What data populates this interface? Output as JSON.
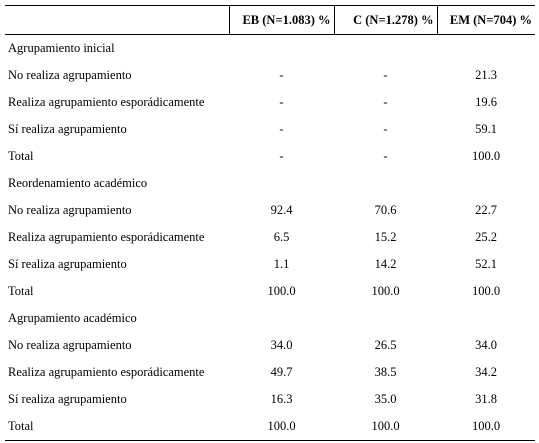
{
  "header": {
    "col_eb": "EB (N=1.083) %",
    "col_c": "C (N=1.278) %",
    "col_em": "EM (N=704) %"
  },
  "sections": [
    {
      "title": "Agrupamiento inicial",
      "rows": [
        {
          "label": "No realiza agrupamiento",
          "eb": "-",
          "c": "-",
          "em": "21.3"
        },
        {
          "label": "Realiza agrupamiento esporádicamente",
          "eb": "-",
          "c": "-",
          "em": "19.6"
        },
        {
          "label": "Sí realiza agrupamiento",
          "eb": "-",
          "c": "-",
          "em": "59.1"
        },
        {
          "label": "Total",
          "eb": "-",
          "c": "-",
          "em": "100.0"
        }
      ]
    },
    {
      "title": "Reordenamiento académico",
      "rows": [
        {
          "label": "No realiza agrupamiento",
          "eb": "92.4",
          "c": "70.6",
          "em": "22.7"
        },
        {
          "label": "Realiza agrupamiento esporádicamente",
          "eb": "6.5",
          "c": "15.2",
          "em": "25.2"
        },
        {
          "label": "Sí realiza agrupamiento",
          "eb": "1.1",
          "c": "14.2",
          "em": "52.1"
        },
        {
          "label": "Total",
          "eb": "100.0",
          "c": "100.0",
          "em": "100.0"
        }
      ]
    },
    {
      "title": "Agrupamiento académico",
      "rows": [
        {
          "label": "No realiza agrupamiento",
          "eb": "34.0",
          "c": "26.5",
          "em": "34.0"
        },
        {
          "label": "Realiza agrupamiento esporádicamente",
          "eb": "49.7",
          "c": "38.5",
          "em": "34.2"
        },
        {
          "label": "Sí realiza agrupamiento",
          "eb": "16.3",
          "c": "35.0",
          "em": "31.8"
        },
        {
          "label": "Total",
          "eb": "100.0",
          "c": "100.0",
          "em": "100.0"
        }
      ]
    }
  ]
}
